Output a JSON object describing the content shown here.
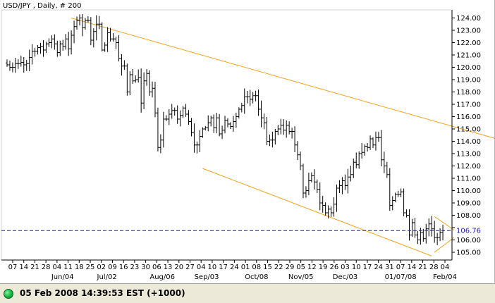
{
  "chart_data": {
    "type": "ohlc",
    "title": "USD/JPY , Daily, # 200",
    "ylim": [
      104.4,
      124.8
    ],
    "yticks": [
      105.0,
      106.0,
      107.0,
      108.0,
      109.0,
      110.0,
      111.0,
      112.0,
      113.0,
      114.0,
      115.0,
      116.0,
      117.0,
      118.0,
      119.0,
      120.0,
      121.0,
      122.0,
      123.0,
      124.0
    ],
    "ytick_labels": [
      "105.00",
      "106.00",
      "107.00",
      "108.00",
      "109.00",
      "110.00",
      "111.00",
      "112.00",
      "113.00",
      "114.00",
      "115.00",
      "116.00",
      "117.00",
      "118.00",
      "119.00",
      "120.00",
      "121.00",
      "122.00",
      "123.00",
      "124.00"
    ],
    "current_value": 106.76,
    "current_label": "106.76",
    "x_day_labels": [
      "07",
      "14",
      "21",
      "28",
      "04",
      "11",
      "18",
      "25",
      "02",
      "09",
      "16",
      "23",
      "30",
      "06",
      "13",
      "20",
      "27",
      "04",
      "10",
      "17",
      "24",
      "01",
      "08",
      "15",
      "22",
      "29",
      "05",
      "12",
      "19",
      "26",
      "03",
      "10",
      "17",
      "24",
      "31",
      "07",
      "14",
      "21",
      "28",
      "04"
    ],
    "x_month_labels": [
      "Jun/04",
      "Jul/02",
      "Aug/06",
      "Sep/03",
      "Oct/08",
      "Nov/05",
      "Dec/03",
      "01/07/08",
      "Feb/04"
    ],
    "series": [
      {
        "close": [
          120.2,
          120.0,
          120.0,
          120.3,
          120.3,
          120.4,
          120.2,
          120.3,
          120.8,
          121.3,
          121.3,
          121.6,
          121.7,
          121.4,
          121.9,
          122.0,
          122.3,
          121.9,
          121.2,
          121.9,
          121.7,
          122.3,
          121.5,
          122.6,
          123.3,
          123.8,
          124.0,
          123.2,
          123.8,
          123.8,
          122.2,
          122.9,
          123.5,
          123.5,
          121.4,
          121.8,
          122.8,
          122.3,
          122.3,
          122.0,
          120.7,
          120.1,
          120.1,
          118.0,
          119.4,
          118.9,
          119.0,
          119.2,
          117.1,
          118.9,
          119.5,
          118.0,
          118.3,
          116.3,
          113.5,
          114.1,
          115.8,
          115.8,
          116.2,
          116.5,
          116.5,
          115.8,
          116.1,
          116.7,
          116.2,
          115.6,
          114.7,
          113.7,
          113.7,
          114.4,
          115.0,
          115.1,
          115.5,
          115.9,
          115.1,
          115.9,
          114.6,
          114.9,
          115.7,
          115.4,
          115.2,
          115.6,
          116.0,
          116.6,
          116.9,
          117.6,
          117.6,
          117.4,
          117.7,
          117.7,
          116.6,
          115.9,
          115.5,
          114.0,
          114.1,
          114.1,
          114.8,
          115.0,
          115.3,
          114.9,
          115.3,
          114.8,
          114.8,
          113.7,
          112.9,
          112.0,
          109.8,
          110.0,
          110.8,
          111.2,
          110.7,
          110.1,
          109.0,
          108.8,
          108.2,
          108.5,
          108.2,
          108.9,
          110.2,
          110.4,
          110.8,
          110.4,
          111.1,
          111.3,
          112.3,
          112.1,
          113.0,
          113.1,
          113.6,
          113.5,
          114.2,
          113.7,
          114.3,
          114.3,
          112.5,
          112.0,
          111.3,
          108.8,
          109.2,
          109.7,
          109.7,
          109.9,
          108.2,
          108.0,
          106.4,
          107.4,
          106.4,
          106.0,
          106.6,
          106.1,
          106.9,
          107.3,
          106.9,
          106.2,
          106.2,
          106.6,
          106.76
        ]
      }
    ],
    "channels": [
      {
        "points": [
          [
            23,
            124.0
          ],
          [
            200,
            112.6
          ]
        ],
        "color": "#f4a21c"
      },
      {
        "points": [
          [
            70,
            111.8
          ],
          [
            152,
            104.7
          ]
        ],
        "color": "#f4a21c"
      },
      {
        "points": [
          [
            153,
            107.9
          ],
          [
            160,
            106.8
          ]
        ],
        "color": "#f4a21c"
      },
      {
        "points": [
          [
            153,
            105.0
          ],
          [
            160,
            106.2
          ]
        ],
        "color": "#f4a21c"
      }
    ],
    "grid": false
  },
  "status": {
    "indicator": "green-led-icon",
    "text": "05 Feb 2008 14:39:53  EST (+1000)"
  },
  "colors": {
    "bars": "#000000",
    "channel": "#f4a21c",
    "current_line": "#1a1aa8",
    "current_text": "#1a1aa8"
  }
}
